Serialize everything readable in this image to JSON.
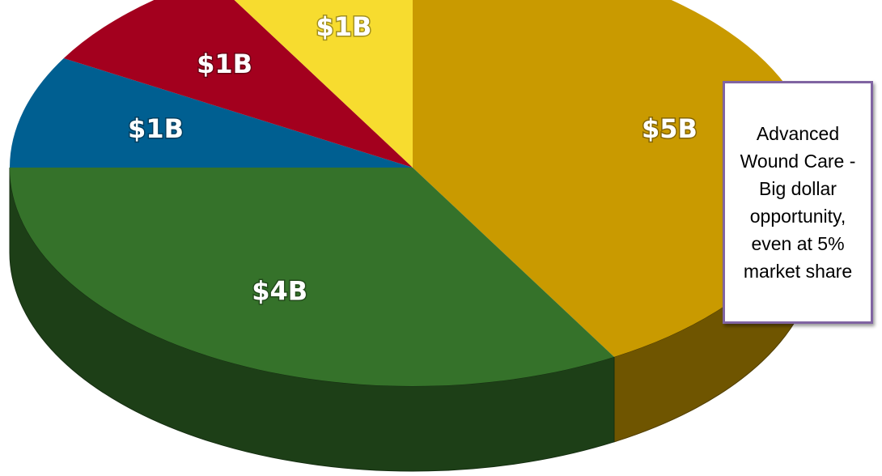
{
  "chart_data": {
    "type": "pie3d",
    "values": [
      5,
      4,
      1,
      1,
      1
    ],
    "value_labels": [
      "$5B",
      "$4B",
      "$1B",
      "$1B",
      "$1B"
    ],
    "colors": [
      "#c99a00",
      "#35722a",
      "#005f91",
      "#a3001e",
      "#f7dc2f"
    ],
    "annotation": "Advanced Wound Care - Big dollar opportunity, even at 5% market share"
  }
}
